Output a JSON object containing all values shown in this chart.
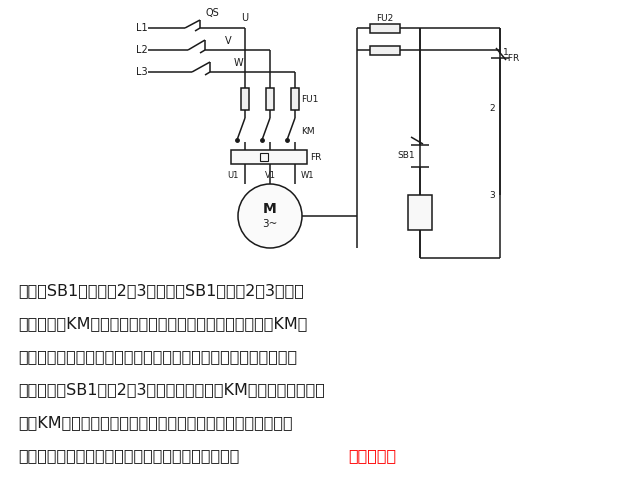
{
  "background_color": "#ffffff",
  "line_color": "#1a1a1a",
  "paragraph": [
    "将按鈕SB1按下，使2与3之间触点SB1闭合，2、3两点接",
    "通，接触器KM线圈有电流流过，接触器的吸引衔鐵吸合，KM的",
    "常开主触点闭合，使电动机接通三相交流电源，按规定方向旋转。",
    "当松开按鈕SB1时，2、3两点断开，接触器KM的线圈失压释放，",
    "同时KM的常开触点断开，电动机停止转动。这种控制电路在快",
    "速行程以及有调整功能的机床中也常采用。其应用是很广泛的。"
  ],
  "red_text": "很广泛的。",
  "fig_width": 6.24,
  "fig_height": 4.79,
  "dpi": 100
}
